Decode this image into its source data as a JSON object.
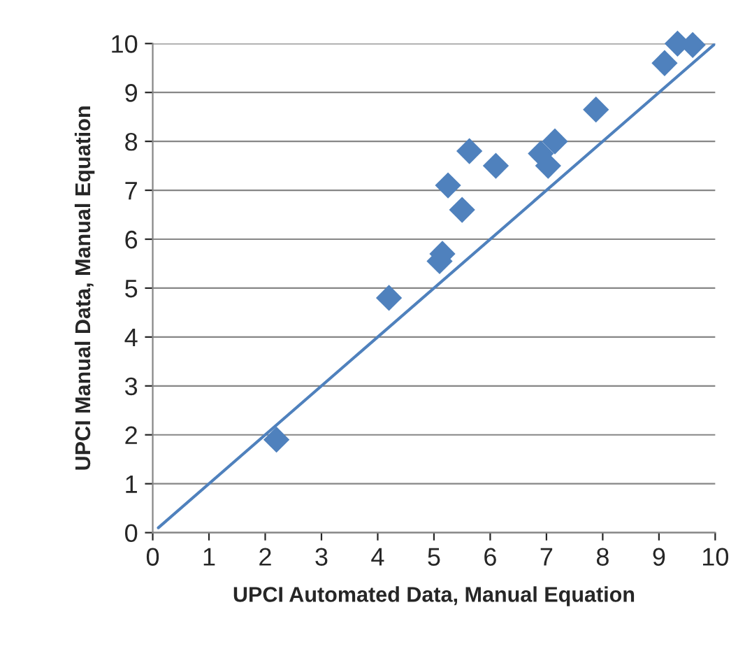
{
  "chart_data": {
    "type": "scatter",
    "xlabel": "UPCI Automated Data, Manual Equation",
    "ylabel": "UPCI Manual Data, Manual Equation",
    "series": [
      {
        "color": "#4f81bd",
        "marker": "diamond",
        "x": [
          2.2,
          4.2,
          5.1,
          5.15,
          5.25,
          5.5,
          5.63,
          6.1,
          6.9,
          7.03,
          7.15,
          7.88,
          9.1,
          9.33,
          9.6
        ],
        "values": [
          1.9,
          4.8,
          5.55,
          5.7,
          7.1,
          6.6,
          7.8,
          7.5,
          7.75,
          7.5,
          8.0,
          8.65,
          9.6,
          10.0,
          9.97
        ]
      },
      {
        "type": "line",
        "color": "#4f81bd",
        "marker": "none",
        "line_style": "solid",
        "x": [
          0.1,
          10
        ],
        "values": [
          0.1,
          10
        ]
      }
    ],
    "xlim": [
      0,
      10
    ],
    "xticks": [
      0,
      1,
      2,
      3,
      4,
      5,
      6,
      7,
      8,
      9,
      10
    ],
    "ylim": [
      0,
      10
    ],
    "yticks": [
      0,
      1,
      2,
      3,
      4,
      5,
      6,
      7,
      8,
      9,
      10
    ],
    "grid": "y",
    "legend": false
  }
}
